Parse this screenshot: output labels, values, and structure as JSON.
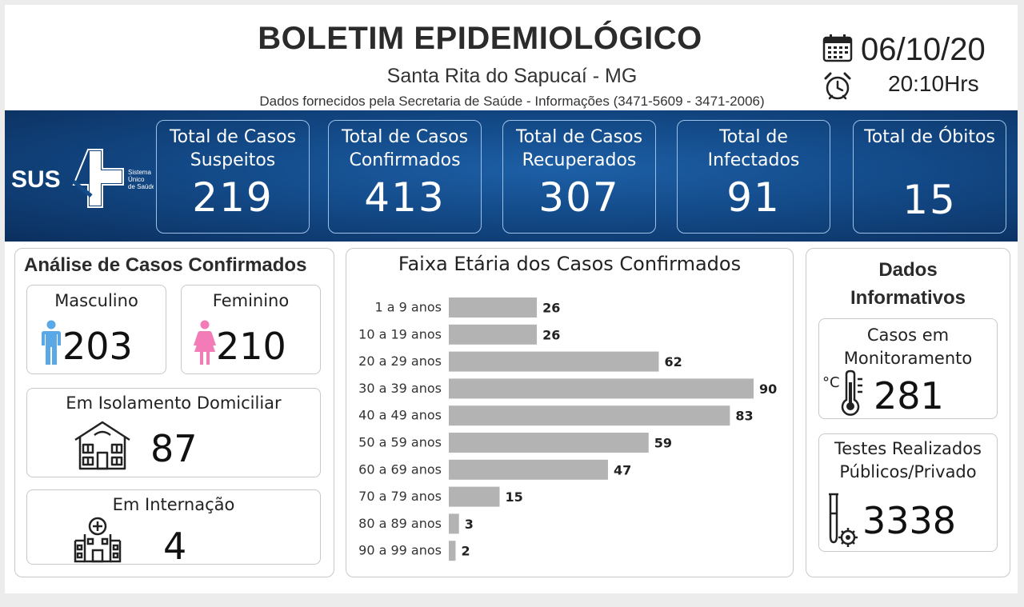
{
  "header": {
    "title": "BOLETIM EPIDEMIOLÓGICO",
    "city": "Santa Rita do Sapucaí - MG",
    "source": "Dados fornecidos pela Secretaria de Saúde - Informações (3471-5609 - 3471-2006)",
    "date": "06/10/20",
    "time": "20:10Hrs"
  },
  "logo": {
    "text": "SUS",
    "sub1": "Sistema",
    "sub2": "Único",
    "sub3": "de Saúde"
  },
  "stats": [
    {
      "label": "Total de Casos\nSuspeitos",
      "value": "219"
    },
    {
      "label": "Total de Casos\nConfirmados",
      "value": "413"
    },
    {
      "label": "Total de Casos\nRecuperados",
      "value": "307"
    },
    {
      "label": "Total de\nInfectados",
      "value": "91"
    },
    {
      "label": "Total de Óbitos",
      "value": "15"
    }
  ],
  "analysis": {
    "title": "Análise de Casos Confirmados",
    "male_label": "Masculino",
    "male_value": "203",
    "female_label": "Feminino",
    "female_value": "210",
    "isolation_label": "Em Isolamento Domiciliar",
    "isolation_value": "87",
    "hospital_label": "Em Internação",
    "hospital_value": "4"
  },
  "chart_data": {
    "type": "bar",
    "orientation": "horizontal",
    "title": "Faixa Etária dos Casos Confirmados",
    "categories": [
      "1 a 9 anos",
      "10 a 19 anos",
      "20 a 29 anos",
      "30 a 39 anos",
      "40 a 49 anos",
      "50 a 59 anos",
      "60 a 69 anos",
      "70 a 79 anos",
      "80 a 89 anos",
      "90 a 99 anos"
    ],
    "values": [
      26,
      26,
      62,
      90,
      83,
      59,
      47,
      15,
      3,
      2
    ],
    "xlim": [
      0,
      90
    ],
    "grid": false,
    "bar_color": "#b3b3b3"
  },
  "info": {
    "title": "Dados\nInformativos",
    "monitoring_label": "Casos em\nMonitoramento",
    "monitoring_value": "281",
    "tests_label": "Testes Realizados\nPúblicos/Privado",
    "tests_value": "3338",
    "therm_unit": "°C"
  },
  "colors": {
    "banner": "#134a88",
    "male": "#5aa9e6",
    "female": "#f27bb8",
    "bars": "#b3b3b3"
  }
}
